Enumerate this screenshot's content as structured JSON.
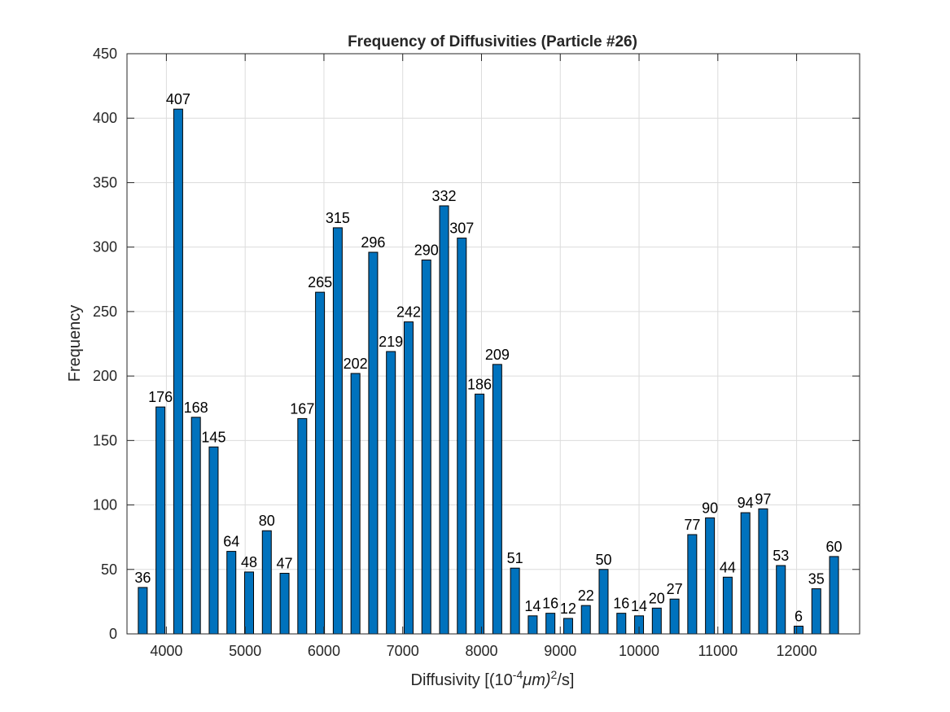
{
  "chart_data": {
    "type": "bar",
    "title": "Frequency of Diffusivities (Particle #26)",
    "xlabel": {
      "prefix": "Diffusivity [(10",
      "exp1": "-4",
      "mid": "μm)",
      "exp2": "2",
      "suffix": "/s]"
    },
    "ylabel": "Frequency",
    "x_ticks": [
      4000,
      5000,
      6000,
      7000,
      8000,
      9000,
      10000,
      11000,
      12000
    ],
    "y_ticks": [
      0,
      50,
      100,
      150,
      200,
      250,
      300,
      350,
      400,
      450
    ],
    "xlim": [
      3500,
      12800
    ],
    "ylim": [
      0,
      450
    ],
    "grid": true,
    "bar_color": "#0072BD",
    "x": [
      3700,
      3925,
      4150,
      4375,
      4600,
      4825,
      5050,
      5275,
      5500,
      5725,
      5950,
      6175,
      6400,
      6625,
      6850,
      7075,
      7300,
      7525,
      7750,
      7975,
      8200,
      8425,
      8650,
      8875,
      9100,
      9325,
      9550,
      9775,
      10000,
      10225,
      10450,
      10675,
      10900,
      11125,
      11350,
      11575,
      11800,
      12025,
      12250,
      12475
    ],
    "values": [
      36,
      176,
      407,
      168,
      145,
      64,
      48,
      80,
      47,
      167,
      265,
      315,
      202,
      296,
      219,
      242,
      290,
      332,
      307,
      186,
      209,
      51,
      14,
      16,
      12,
      22,
      50,
      16,
      14,
      20,
      27,
      77,
      90,
      44,
      94,
      97,
      53,
      6,
      35,
      60
    ]
  }
}
